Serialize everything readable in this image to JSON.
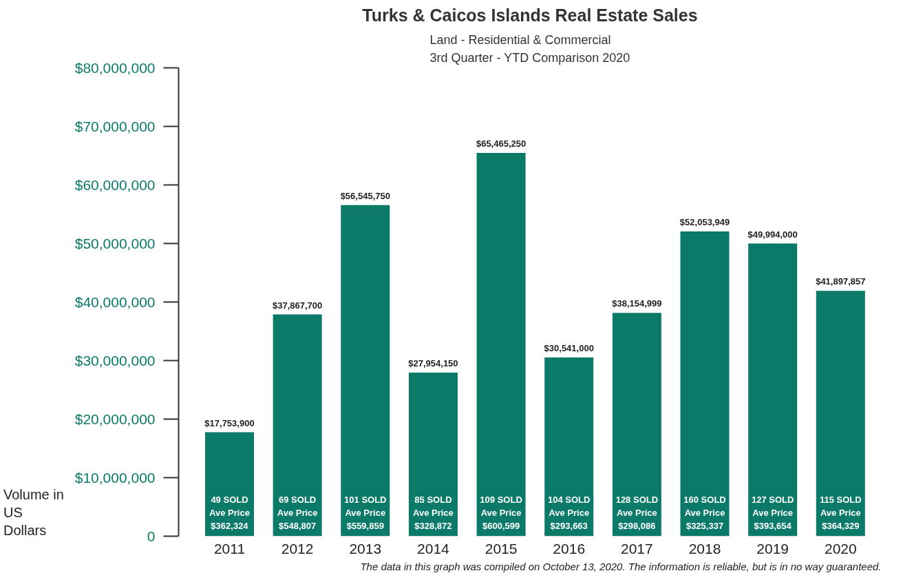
{
  "chart_data": {
    "type": "bar",
    "title": "Turks & Caicos Islands Real Estate Sales",
    "subtitle": "Land - Residential & Commercial\n3rd Quarter - YTD Comparison 2020",
    "ylabel": "Volume in US Dollars",
    "categories": [
      "2011",
      "2012",
      "2013",
      "2014",
      "2015",
      "2016",
      "2017",
      "2018",
      "2019",
      "2020"
    ],
    "values": [
      17753900,
      37867700,
      56545750,
      27954150,
      65465250,
      30541000,
      38154999,
      52053949,
      49994000,
      41897857
    ],
    "color": "#0b7a69",
    "value_labels": [
      "$17,753,900",
      "$37,867,700",
      "$56,545,750",
      "$27,954,150",
      "$65,465,250",
      "$30,541,000",
      "$38,154,999",
      "$52,053,949",
      "$49,994,000",
      "$41,897,857"
    ],
    "ylim": [
      0,
      80000000
    ],
    "yticks": [
      0,
      {
        "value": 10000000,
        "label": "$10,000,000"
      },
      {
        "value": 20000000,
        "label": "$20,000,000"
      },
      {
        "value": 30000000,
        "label": "$30,000,000"
      },
      {
        "value": 40000000,
        "label": "$40,000,000"
      },
      {
        "value": 50000000,
        "label": "$50,000,000"
      },
      {
        "value": 60000000,
        "label": "$60,000,000"
      },
      {
        "value": 70000000,
        "label": "$70,000,000"
      },
      {
        "value": 80000000,
        "label": "$80,000,000"
      }
    ],
    "grid": false,
    "annotations": [
      {
        "text": "49 SOLD\nAve Price\n$362,324",
        "x": "2011",
        "y": 0
      },
      {
        "text": "69 SOLD\nAve Price\n$548,807",
        "x": "2012",
        "y": 0
      },
      {
        "text": "101 SOLD\nAve Price\n$559,859",
        "x": "2013",
        "y": 0
      },
      {
        "text": "85 SOLD\nAve Price\n$328,872",
        "x": "2014",
        "y": 0
      },
      {
        "text": "109 SOLD\nAve Price\n$600,599",
        "x": "2015",
        "y": 0
      },
      {
        "text": "104 SOLD\nAve Price\n$293,663",
        "x": "2016",
        "y": 0
      },
      {
        "text": "128 SOLD\nAve Price\n$298,086",
        "x": "2017",
        "y": 0
      },
      {
        "text": "160 SOLD\nAve Price\n$325,337",
        "x": "2018",
        "y": 0
      },
      {
        "text": "127 SOLD\nAve Price\n$393,654",
        "x": "2019",
        "y": 0
      },
      {
        "text": "115 SOLD\nAve Price\n$364,329",
        "x": "2020",
        "y": 0
      },
      "The data in this graph was compiled on October 13, 2020. The information is reliable, but is in no way guaranteed."
    ]
  }
}
